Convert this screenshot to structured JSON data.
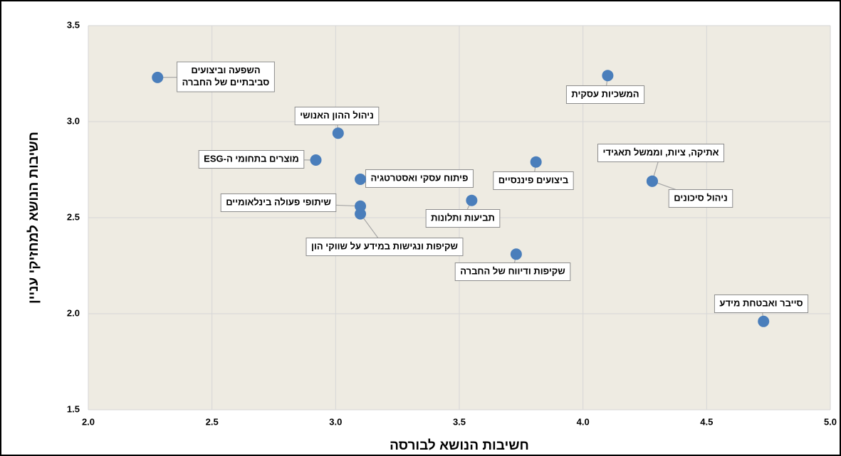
{
  "chart_data": {
    "type": "scatter",
    "x_label": "חשיבות הנושא לבורסה",
    "y_label": "חשיבות הנושא למחזיקי עניין",
    "color": "#4a7ebb",
    "grid": true,
    "xlim": [
      2,
      5
    ],
    "ylim": [
      1.5,
      3.5
    ],
    "xticks": [
      {
        "value": 2,
        "label": "2.0"
      },
      2.5,
      {
        "value": 3,
        "label": "3.0"
      },
      3.5,
      {
        "value": 4,
        "label": "4.0"
      },
      4.5,
      {
        "value": 5,
        "label": "5.0"
      }
    ],
    "yticks": [
      1.5,
      {
        "value": 2,
        "label": "2.0"
      },
      2.5,
      {
        "value": 3,
        "label": "3.0"
      },
      3.5
    ],
    "x": [
      2.28,
      4.1,
      3.01,
      2.92,
      3.1,
      3.81,
      4.28,
      4.28,
      3.55,
      3.1,
      3.1,
      3.73,
      4.73
    ],
    "values": [
      3.23,
      3.24,
      2.94,
      2.8,
      2.7,
      2.79,
      2.69,
      2.69,
      2.59,
      2.56,
      2.52,
      2.31,
      1.96
    ],
    "labels": [
      [
        "השפעה וביצועים",
        "סביבתיים של החברה"
      ],
      [
        "המשכיות עסקית"
      ],
      [
        "ניהול ההון האנושי"
      ],
      [
        "מוצרים בתחומי ה-ESG"
      ],
      [
        "פיתוח עסקי ואסטרטגיה"
      ],
      [
        "ביצועים פיננסיים"
      ],
      [
        "אתיקה, ציות, וממשל תאגידי"
      ],
      [
        "ניהול סיכונים"
      ],
      [
        "תביעות ותלונות"
      ],
      [
        "שיתופי פעולה בינלאומיים"
      ],
      [
        "שקיפות ונגישות במידע על שווקי הון"
      ],
      [
        "שקיפות ודיווח של החברה"
      ],
      [
        "סייבר ואבטחת מידע"
      ]
    ]
  }
}
